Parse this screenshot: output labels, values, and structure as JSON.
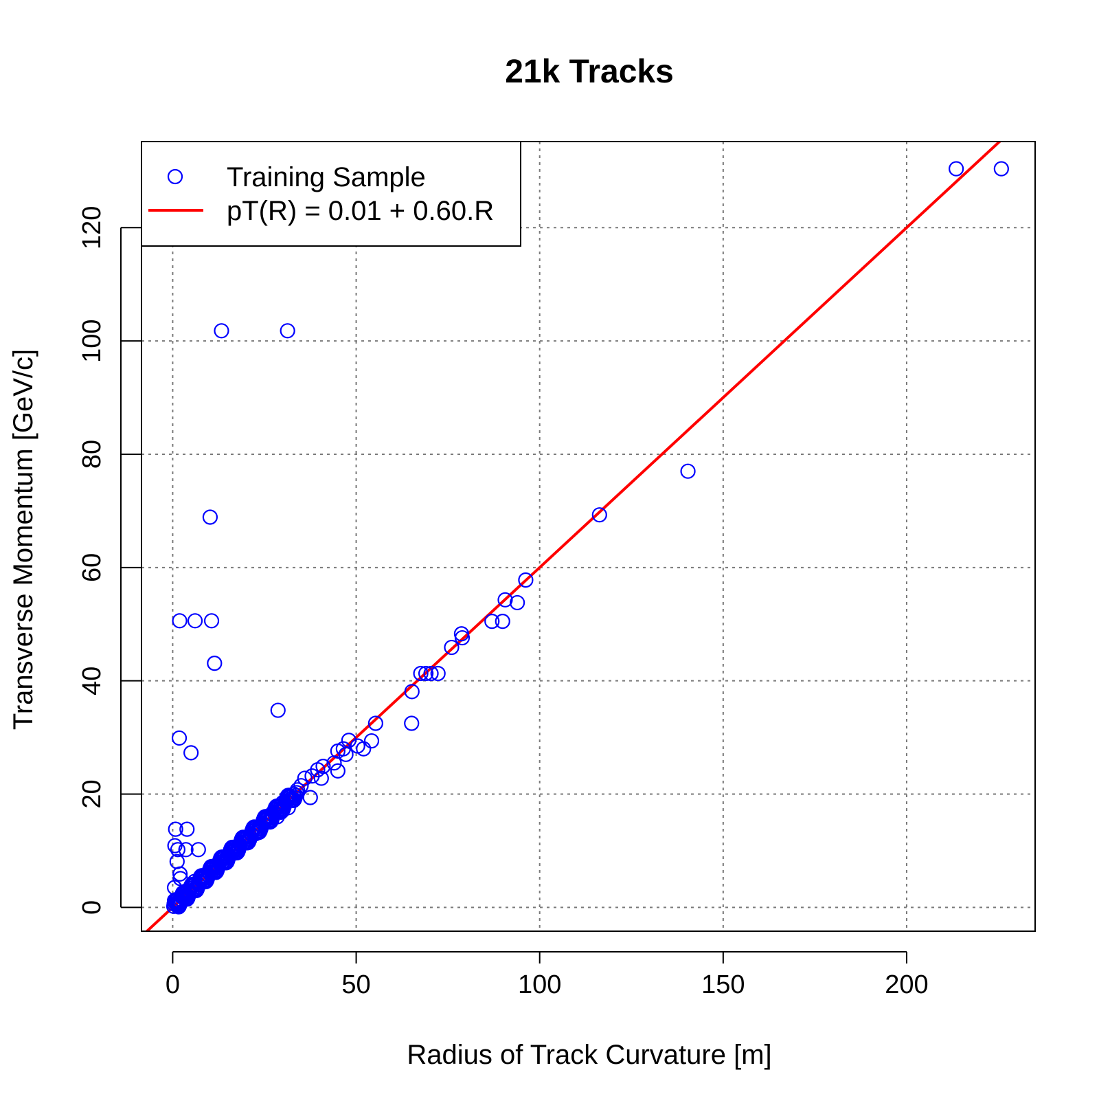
{
  "chart_data": {
    "type": "scatter",
    "title": "21k Tracks",
    "xlabel": "Radius of Track Curvature [m]",
    "ylabel": "Transverse Momentum [GeV/c]",
    "xlim": [
      -8.5,
      235
    ],
    "ylim": [
      -4.2,
      135.2
    ],
    "xticks": [
      0,
      50,
      100,
      150,
      200
    ],
    "yticks": [
      0,
      20,
      40,
      60,
      80,
      100,
      120
    ],
    "grid": true,
    "legend_position": "top-left",
    "series": [
      {
        "name": "Training Sample",
        "kind": "points",
        "color": "#0000ff",
        "marker": "open-circle",
        "points": [
          [
            213.5,
            130.4
          ],
          [
            225.8,
            130.4
          ],
          [
            140.4,
            77.0
          ],
          [
            116.3,
            69.3
          ],
          [
            13.3,
            101.8
          ],
          [
            31.3,
            101.8
          ],
          [
            10.2,
            68.9
          ],
          [
            1.9,
            50.6
          ],
          [
            6.1,
            50.6
          ],
          [
            10.6,
            50.6
          ],
          [
            11.4,
            43.1
          ],
          [
            28.7,
            34.8
          ],
          [
            1.8,
            29.9
          ],
          [
            5.0,
            27.3
          ],
          [
            96.2,
            57.8
          ],
          [
            90.6,
            54.3
          ],
          [
            93.9,
            53.8
          ],
          [
            87.0,
            50.5
          ],
          [
            89.9,
            50.5
          ],
          [
            78.7,
            48.3
          ],
          [
            78.9,
            47.6
          ],
          [
            76.0,
            45.9
          ],
          [
            67.6,
            41.3
          ],
          [
            69.0,
            41.3
          ],
          [
            70.4,
            41.3
          ],
          [
            72.3,
            41.3
          ],
          [
            65.2,
            38.1
          ],
          [
            65.1,
            32.5
          ],
          [
            55.3,
            32.5
          ],
          [
            54.2,
            29.4
          ],
          [
            52.0,
            28.0
          ],
          [
            50.4,
            28.5
          ],
          [
            48.0,
            29.5
          ],
          [
            46.5,
            28.0
          ],
          [
            45.0,
            27.6
          ],
          [
            47.2,
            27.0
          ],
          [
            44.0,
            25.5
          ],
          [
            45.0,
            24.1
          ],
          [
            41.0,
            24.9
          ],
          [
            39.5,
            24.3
          ],
          [
            40.5,
            22.8
          ],
          [
            38.0,
            23.2
          ],
          [
            36.0,
            22.8
          ],
          [
            37.5,
            19.4
          ],
          [
            35.0,
            21.5
          ],
          [
            33.0,
            20.0
          ],
          [
            31.5,
            17.6
          ],
          [
            30.0,
            18.5
          ],
          [
            29.5,
            16.8
          ],
          [
            28.5,
            16.0
          ],
          [
            27.0,
            16.5
          ],
          [
            25.5,
            15.5
          ],
          [
            24.0,
            14.5
          ],
          [
            22.5,
            13.0
          ],
          [
            21.0,
            12.5
          ],
          [
            19.5,
            11.5
          ],
          [
            18.0,
            10.8
          ],
          [
            16.5,
            10.0
          ],
          [
            15.0,
            9.0
          ],
          [
            13.5,
            8.0
          ],
          [
            12.0,
            7.3
          ],
          [
            10.5,
            6.2
          ],
          [
            9.0,
            5.5
          ],
          [
            7.5,
            4.4
          ],
          [
            6.0,
            4.6
          ],
          [
            4.5,
            2.7
          ],
          [
            3.0,
            1.8
          ],
          [
            1.5,
            1.0
          ],
          [
            0.5,
            1.2
          ],
          [
            1.2,
            0.8
          ],
          [
            0.8,
            13.8
          ],
          [
            3.9,
            13.8
          ],
          [
            0.6,
            10.9
          ],
          [
            1.4,
            10.2
          ],
          [
            3.6,
            10.2
          ],
          [
            7.0,
            10.2
          ],
          [
            1.2,
            8.1
          ],
          [
            2.0,
            5.9
          ],
          [
            2.1,
            5.1
          ],
          [
            0.5,
            3.5
          ]
        ],
        "dense_band": {
          "x_from": 0.3,
          "x_to": 34.0,
          "y_of_x": "0.60*R + 0.01",
          "spread": 0.9,
          "count": 180
        }
      },
      {
        "name": "pT(R) = 0.01 + 0.60.R",
        "kind": "line",
        "color": "#ff0000",
        "intercept": 0.01,
        "slope": 0.6
      }
    ]
  }
}
